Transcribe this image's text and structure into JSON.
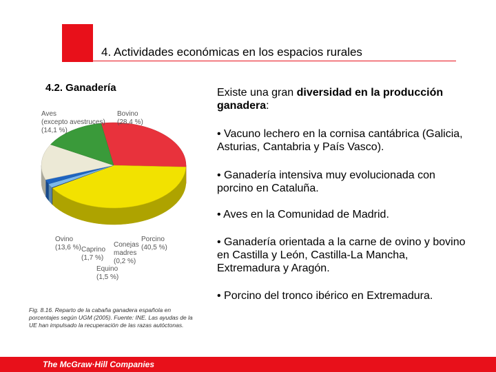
{
  "header": {
    "title": "4. Actividades económicas en los espacios rurales",
    "subtitle": "4.2. Ganadería"
  },
  "chart_data": {
    "type": "pie",
    "categories": [
      "Bovino",
      "Porcino",
      "Conejas madres",
      "Equino",
      "Caprino",
      "Ovino",
      "Aves"
    ],
    "values": [
      28.4,
      40.5,
      0.2,
      1.5,
      1.7,
      13.6,
      14.1
    ],
    "value_labels": [
      "(28,4 %)",
      "(40,5 %)",
      "(0,2 %)",
      "(1,5 %)",
      "(1,7 %)",
      "(13,6 %)",
      "(14,1 %)"
    ],
    "colors": [
      "#e8323c",
      "#f2e200",
      "#1a3f8a",
      "#7db9ea",
      "#1e64c0",
      "#ece9d6",
      "#3a9a3a"
    ],
    "annotations": [
      "(excepto avestruces)"
    ]
  },
  "caption": "Fig. 8.16. Reparto de la cabaña ganadera española en porcentajes según UGM (2005). Fuente: INE. Las ayudas de la UE han impulsado la recuperación de las razas autóctonas.",
  "text": {
    "intro": [
      "Existe una gran ",
      "diversidad en la producción ganadera",
      ":"
    ],
    "bullets": [
      "• Vacuno lechero en la cornisa cantábrica (Galicia, Asturias, Cantabria y País Vasco).",
      "• Ganadería intensiva muy evolucionada con porcino en Cataluña.",
      "• Aves en la Comunidad de Madrid.",
      "• Ganadería orientada a la carne de ovino y bovino en Castilla y León, Castilla-La Mancha, Extremadura y Aragón.",
      "• Porcino del tronco ibérico en Extremadura."
    ]
  },
  "footer": {
    "brand": "The McGraw·Hill Companies"
  }
}
